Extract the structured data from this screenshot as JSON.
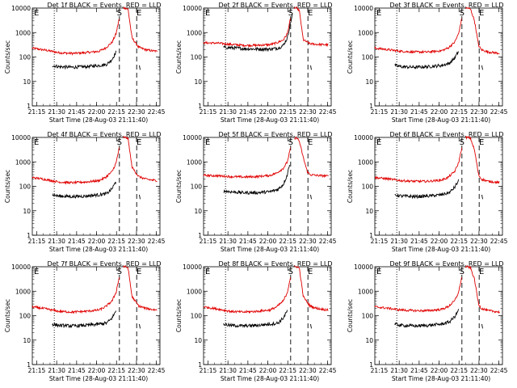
{
  "figure": {
    "title_template": "Det {n}f BLACK = Events, RED = LLD",
    "xlabel": "Start Time (28-Aug-03 21:11:40)",
    "ylabel": "Counts/sec",
    "start_label": "S",
    "end_label": "E"
  },
  "chart_data": {
    "type": "line",
    "panel_count": 9,
    "x_unit": "minutes after 21:11:40",
    "xlim": [
      0,
      96
    ],
    "ylim": [
      1,
      10000
    ],
    "yscale": "log",
    "x_ticks": [
      {
        "value": 3.33,
        "label": "21:15"
      },
      {
        "value": 18.33,
        "label": "21:30"
      },
      {
        "value": 33.33,
        "label": "21:45"
      },
      {
        "value": 48.33,
        "label": "22:00"
      },
      {
        "value": 63.33,
        "label": "22:15"
      },
      {
        "value": 78.33,
        "label": "22:30"
      },
      {
        "value": 93.33,
        "label": "22:45"
      }
    ],
    "y_ticks": [
      {
        "value": 1,
        "label": "1"
      },
      {
        "value": 10,
        "label": "10"
      },
      {
        "value": 100,
        "label": "100"
      },
      {
        "value": 1000,
        "label": "1000"
      },
      {
        "value": 10000,
        "label": "10000"
      }
    ],
    "dotted_marker_x": 16.5,
    "dashed_marker_x": [
      65.5,
      78.5
    ],
    "series_colors": {
      "events": "#000000",
      "lld": "#e00000"
    },
    "panels": [
      {
        "det": 1,
        "events": {
          "x": [
            15,
            20,
            30,
            40,
            50,
            56,
            60,
            63
          ],
          "y": [
            45,
            40,
            38,
            40,
            45,
            50,
            80,
            160
          ]
        },
        "lld": {
          "x": [
            0,
            10,
            20,
            30,
            40,
            50,
            55,
            60,
            63,
            65,
            68,
            70,
            72,
            75,
            80,
            85,
            90,
            94
          ],
          "y": [
            230,
            190,
            150,
            140,
            150,
            170,
            230,
            400,
            900,
            3000,
            10000,
            10000,
            9000,
            600,
            250,
            200,
            180,
            170
          ]
        }
      },
      {
        "det": 2,
        "events": {
          "x": [
            15,
            20,
            30,
            40,
            50,
            56,
            60,
            63,
            65,
            67
          ],
          "y": [
            250,
            240,
            220,
            210,
            210,
            230,
            300,
            600,
            2000,
            6000
          ]
        },
        "lld": {
          "x": [
            0,
            10,
            20,
            30,
            40,
            50,
            55,
            60,
            63,
            65,
            68,
            70,
            72,
            75,
            80,
            85,
            90,
            94
          ],
          "y": [
            380,
            370,
            330,
            300,
            300,
            320,
            380,
            500,
            900,
            3000,
            10000,
            10000,
            8000,
            500,
            350,
            330,
            320,
            310
          ]
        }
      },
      {
        "det": 3,
        "events": {
          "x": [
            15,
            20,
            30,
            40,
            50,
            56,
            60,
            63
          ],
          "y": [
            45,
            40,
            38,
            40,
            45,
            55,
            90,
            170
          ]
        },
        "lld": {
          "x": [
            0,
            10,
            20,
            30,
            40,
            50,
            55,
            60,
            63,
            65,
            68,
            70,
            72,
            75,
            78,
            80,
            85,
            90,
            94
          ],
          "y": [
            230,
            200,
            170,
            160,
            160,
            180,
            230,
            400,
            900,
            3000,
            10000,
            10000,
            9000,
            3000,
            300,
            200,
            160,
            150,
            140
          ]
        }
      },
      {
        "det": 4,
        "events": {
          "x": [
            15,
            20,
            30,
            40,
            50,
            56,
            60,
            63
          ],
          "y": [
            45,
            40,
            38,
            40,
            45,
            50,
            80,
            160
          ]
        },
        "lld": {
          "x": [
            0,
            10,
            20,
            30,
            40,
            50,
            55,
            60,
            63,
            65,
            68,
            70,
            72,
            75,
            80,
            85,
            90,
            94
          ],
          "y": [
            230,
            190,
            150,
            140,
            150,
            170,
            230,
            400,
            900,
            3000,
            10000,
            10000,
            9000,
            600,
            250,
            200,
            180,
            170
          ]
        }
      },
      {
        "det": 5,
        "events": {
          "x": [
            15,
            20,
            30,
            40,
            50,
            56,
            60,
            63,
            65
          ],
          "y": [
            65,
            60,
            55,
            55,
            60,
            75,
            120,
            300,
            1000
          ]
        },
        "lld": {
          "x": [
            0,
            10,
            20,
            30,
            40,
            50,
            55,
            60,
            63,
            65,
            68,
            70,
            72,
            75,
            78,
            80,
            85,
            90,
            94
          ],
          "y": [
            280,
            270,
            250,
            240,
            250,
            280,
            350,
            550,
            1000,
            3000,
            8000,
            10000,
            7000,
            1500,
            400,
            300,
            280,
            270,
            260
          ]
        }
      },
      {
        "det": 6,
        "events": {
          "x": [
            15,
            20,
            30,
            40,
            50,
            56,
            60,
            63
          ],
          "y": [
            45,
            40,
            38,
            40,
            45,
            55,
            90,
            170
          ]
        },
        "lld": {
          "x": [
            0,
            10,
            20,
            30,
            40,
            50,
            55,
            60,
            63,
            65,
            68,
            70,
            72,
            75,
            78,
            80,
            85,
            90,
            94
          ],
          "y": [
            230,
            200,
            170,
            160,
            160,
            180,
            230,
            400,
            900,
            3000,
            10000,
            10000,
            9000,
            3000,
            300,
            200,
            160,
            150,
            140
          ]
        }
      },
      {
        "det": 7,
        "events": {
          "x": [
            15,
            20,
            30,
            40,
            50,
            56,
            60,
            63
          ],
          "y": [
            45,
            40,
            38,
            40,
            45,
            50,
            80,
            160
          ]
        },
        "lld": {
          "x": [
            0,
            10,
            20,
            30,
            40,
            50,
            55,
            60,
            63,
            65,
            68,
            70,
            72,
            75,
            80,
            85,
            90,
            94
          ],
          "y": [
            230,
            190,
            150,
            140,
            150,
            170,
            230,
            400,
            900,
            3000,
            10000,
            10000,
            9000,
            600,
            250,
            200,
            180,
            170
          ]
        }
      },
      {
        "det": 8,
        "events": {
          "x": [
            15,
            20,
            30,
            40,
            50,
            56,
            60,
            63
          ],
          "y": [
            45,
            40,
            38,
            40,
            45,
            50,
            80,
            160
          ]
        },
        "lld": {
          "x": [
            0,
            10,
            20,
            30,
            40,
            50,
            55,
            60,
            63,
            65,
            68,
            70,
            72,
            75,
            80,
            85,
            90,
            94
          ],
          "y": [
            230,
            190,
            150,
            140,
            150,
            170,
            230,
            400,
            900,
            3000,
            10000,
            10000,
            9000,
            600,
            250,
            200,
            180,
            170
          ]
        }
      },
      {
        "det": 9,
        "events": {
          "x": [
            15,
            20,
            30,
            40,
            50,
            56,
            60,
            63
          ],
          "y": [
            45,
            40,
            38,
            40,
            45,
            55,
            90,
            170
          ]
        },
        "lld": {
          "x": [
            0,
            10,
            20,
            30,
            40,
            50,
            55,
            60,
            63,
            65,
            68,
            70,
            72,
            75,
            78,
            80,
            85,
            90,
            94
          ],
          "y": [
            230,
            200,
            170,
            160,
            160,
            180,
            230,
            400,
            900,
            3000,
            10000,
            10000,
            9000,
            3000,
            300,
            200,
            160,
            150,
            140
          ]
        }
      }
    ]
  }
}
